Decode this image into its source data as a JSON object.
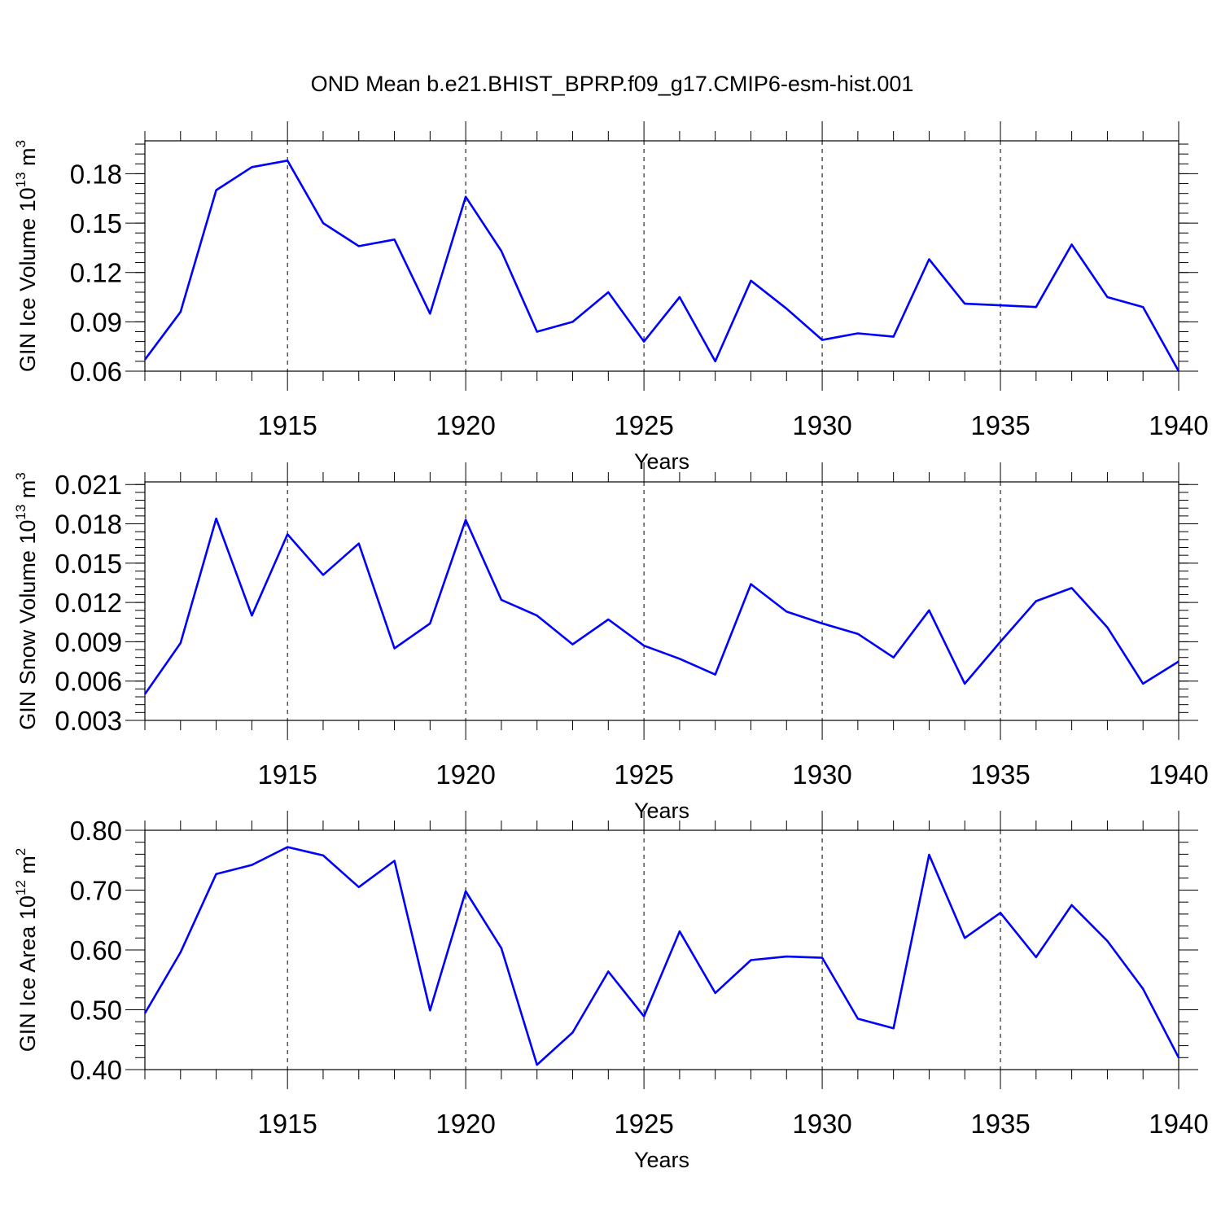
{
  "title": "OND Mean b.e21.BHIST_BPRP.f09_g17.CMIP6-esm-hist.001",
  "line_color": "#0000ff",
  "chart_data": [
    {
      "type": "line",
      "title": "",
      "xlabel": "Years",
      "ylabel": {
        "base": "GIN Ice Volume 10",
        "exp": "13",
        "unit": " m",
        "unit_exp": "3"
      },
      "xlim": [
        1911,
        1940
      ],
      "ylim": [
        0.06,
        0.2
      ],
      "xticks": [
        "1915",
        "1920",
        "1925",
        "1930",
        "1935",
        "1940"
      ],
      "yticks": [
        "0.06",
        "0.09",
        "0.12",
        "0.15",
        "0.18"
      ],
      "grid": "dashed vertical at major x ticks",
      "series": [
        {
          "x": [
            1911,
            1912,
            1913,
            1914,
            1915,
            1916,
            1917,
            1918,
            1919,
            1920,
            1921,
            1922,
            1923,
            1924,
            1925,
            1926,
            1927,
            1928,
            1929,
            1930,
            1931,
            1932,
            1933,
            1934,
            1935,
            1936,
            1937,
            1938,
            1939,
            1940
          ],
          "values": [
            0.067,
            0.096,
            0.17,
            0.184,
            0.188,
            0.15,
            0.136,
            0.14,
            0.095,
            0.166,
            0.133,
            0.084,
            0.09,
            0.108,
            0.078,
            0.105,
            0.066,
            0.115,
            0.098,
            0.079,
            0.083,
            0.081,
            0.128,
            0.101,
            0.1,
            0.099,
            0.137,
            0.105,
            0.099,
            0.06
          ]
        }
      ]
    },
    {
      "type": "line",
      "title": "",
      "xlabel": "Years",
      "ylabel": {
        "base": "GIN Snow Volume 10",
        "exp": "13",
        "unit": " m",
        "unit_exp": "3"
      },
      "xlim": [
        1911,
        1940
      ],
      "ylim": [
        0.003,
        0.0212
      ],
      "xticks": [
        "1915",
        "1920",
        "1925",
        "1930",
        "1935",
        "1940"
      ],
      "yticks": [
        "0.003",
        "0.006",
        "0.009",
        "0.012",
        "0.015",
        "0.018",
        "0.021"
      ],
      "grid": "dashed vertical at major x ticks",
      "series": [
        {
          "x": [
            1911,
            1912,
            1913,
            1914,
            1915,
            1916,
            1917,
            1918,
            1919,
            1920,
            1921,
            1922,
            1923,
            1924,
            1925,
            1926,
            1927,
            1928,
            1929,
            1930,
            1931,
            1932,
            1933,
            1934,
            1935,
            1936,
            1937,
            1938,
            1939,
            1940
          ],
          "values": [
            0.005,
            0.0089,
            0.0184,
            0.011,
            0.0172,
            0.0141,
            0.0165,
            0.0085,
            0.0104,
            0.0183,
            0.0122,
            0.011,
            0.0088,
            0.0107,
            0.0087,
            0.0077,
            0.0065,
            0.0134,
            0.0113,
            0.0104,
            0.0096,
            0.0078,
            0.0114,
            0.0058,
            0.009,
            0.0121,
            0.0131,
            0.0101,
            0.0058,
            0.0075
          ]
        }
      ]
    },
    {
      "type": "line",
      "title": "",
      "xlabel": "Years",
      "ylabel": {
        "base": "GIN Ice Area 10",
        "exp": "12",
        "unit": " m",
        "unit_exp": "2"
      },
      "xlim": [
        1911,
        1940
      ],
      "ylim": [
        0.4,
        0.8
      ],
      "xticks": [
        "1915",
        "1920",
        "1925",
        "1930",
        "1935",
        "1940"
      ],
      "yticks": [
        "0.40",
        "0.50",
        "0.60",
        "0.70",
        "0.80"
      ],
      "grid": "dashed vertical at major x ticks",
      "series": [
        {
          "x": [
            1911,
            1912,
            1913,
            1914,
            1915,
            1916,
            1917,
            1918,
            1919,
            1920,
            1921,
            1922,
            1923,
            1924,
            1925,
            1926,
            1927,
            1928,
            1929,
            1930,
            1931,
            1932,
            1933,
            1934,
            1935,
            1936,
            1937,
            1938,
            1939,
            1940
          ],
          "values": [
            0.494,
            0.596,
            0.727,
            0.742,
            0.772,
            0.758,
            0.705,
            0.749,
            0.499,
            0.698,
            0.603,
            0.408,
            0.462,
            0.564,
            0.489,
            0.631,
            0.528,
            0.583,
            0.589,
            0.587,
            0.485,
            0.469,
            0.759,
            0.62,
            0.662,
            0.588,
            0.675,
            0.615,
            0.535,
            0.42
          ]
        }
      ]
    }
  ]
}
